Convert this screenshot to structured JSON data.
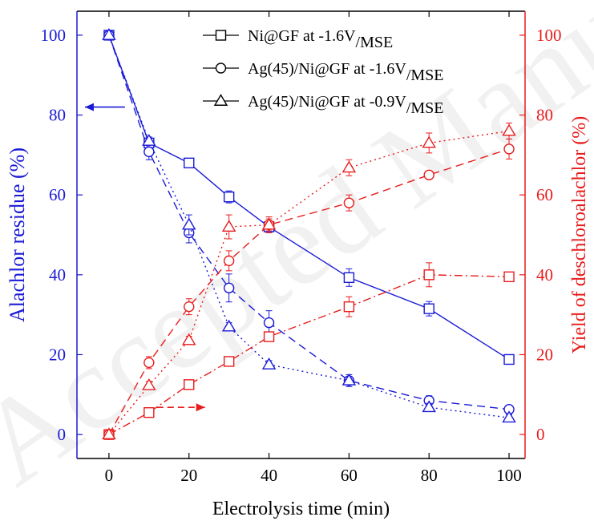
{
  "chart_data": {
    "type": "line",
    "watermark": "Accepted Manuscript",
    "xlabel": "Electrolysis time (min)",
    "ylabel_left": "Alachlor residue (%)",
    "ylabel_right": "Yield of deschloroalachlor (%)",
    "xlim": [
      -8,
      104
    ],
    "ylim_left": [
      -6,
      106
    ],
    "ylim_right": [
      -6,
      106
    ],
    "x_ticks": [
      0,
      20,
      40,
      60,
      80,
      100
    ],
    "y_ticks_left": [
      0,
      20,
      40,
      60,
      80,
      100
    ],
    "y_ticks_right": [
      0,
      20,
      40,
      60,
      80,
      100
    ],
    "colors": {
      "left_axis": "#1a1ad6",
      "right_axis": "#e81c1c",
      "frame": "#000000"
    },
    "legend": {
      "placement": "top-center",
      "entries": [
        {
          "marker": "square",
          "main": "Ni@GF at -1.6V",
          "sub": "/MSE"
        },
        {
          "marker": "circle",
          "main": "Ag(45)/Ni@GF at -1.6V",
          "sub": "/MSE"
        },
        {
          "marker": "triangle",
          "main": "Ag(45)/Ni@GF at -0.9V",
          "sub": "/MSE"
        }
      ]
    },
    "series": [
      {
        "axis": "left",
        "marker": "square",
        "line": "solid",
        "x": [
          0,
          10,
          20,
          30,
          40,
          60,
          80,
          100
        ],
        "y": [
          100,
          73,
          68,
          59.5,
          52,
          39.3,
          31.5,
          18.8
        ],
        "err": [
          0,
          1,
          1,
          1.5,
          1.5,
          2.2,
          1.8,
          1
        ]
      },
      {
        "axis": "left",
        "marker": "circle",
        "line": "dash",
        "x": [
          0,
          10,
          20,
          30,
          40,
          60,
          80,
          100
        ],
        "y": [
          100,
          70.8,
          50.5,
          36.7,
          28,
          13.5,
          8.5,
          6.3
        ],
        "err": [
          0,
          2,
          2.5,
          3.5,
          3,
          1.5,
          1.2,
          1
        ]
      },
      {
        "axis": "left",
        "marker": "triangle",
        "line": "dot",
        "x": [
          0,
          10,
          20,
          30,
          40,
          60,
          80,
          100
        ],
        "y": [
          100,
          73.5,
          52.5,
          27,
          17.5,
          13.5,
          6.8,
          4.2
        ],
        "err": [
          0,
          1,
          2.5,
          1,
          1,
          1,
          1,
          0.8
        ]
      },
      {
        "axis": "right",
        "marker": "square",
        "line": "dashdot",
        "x": [
          0,
          10,
          20,
          30,
          40,
          60,
          80,
          100
        ],
        "y": [
          0,
          5.5,
          12.5,
          18.3,
          24.5,
          32,
          40,
          39.5
        ],
        "err": [
          0,
          0.6,
          0.8,
          1,
          1.2,
          2.5,
          3,
          0.8
        ]
      },
      {
        "axis": "right",
        "marker": "circle",
        "line": "dash",
        "x": [
          0,
          10,
          20,
          30,
          40,
          60,
          80,
          100
        ],
        "y": [
          0,
          18,
          32,
          43.5,
          52.5,
          58,
          65,
          71.5
        ],
        "err": [
          0,
          1.5,
          2,
          2.5,
          2,
          2,
          1,
          2.5
        ]
      },
      {
        "axis": "right",
        "marker": "triangle",
        "line": "dot",
        "x": [
          0,
          10,
          20,
          30,
          40,
          60,
          80,
          100
        ],
        "y": [
          0,
          12.3,
          23.6,
          52,
          52.5,
          66.8,
          73,
          76
        ],
        "err": [
          0,
          1,
          1,
          3,
          1.5,
          2,
          2.5,
          2
        ]
      }
    ],
    "arrows": [
      {
        "axis": "left",
        "direction": "left",
        "x_from": 4,
        "x_to": -6,
        "y": 82,
        "line": "solid"
      },
      {
        "axis": "right",
        "direction": "right",
        "x_from": 12,
        "x_to": 24,
        "y": 6.8,
        "line": "dash"
      }
    ]
  }
}
